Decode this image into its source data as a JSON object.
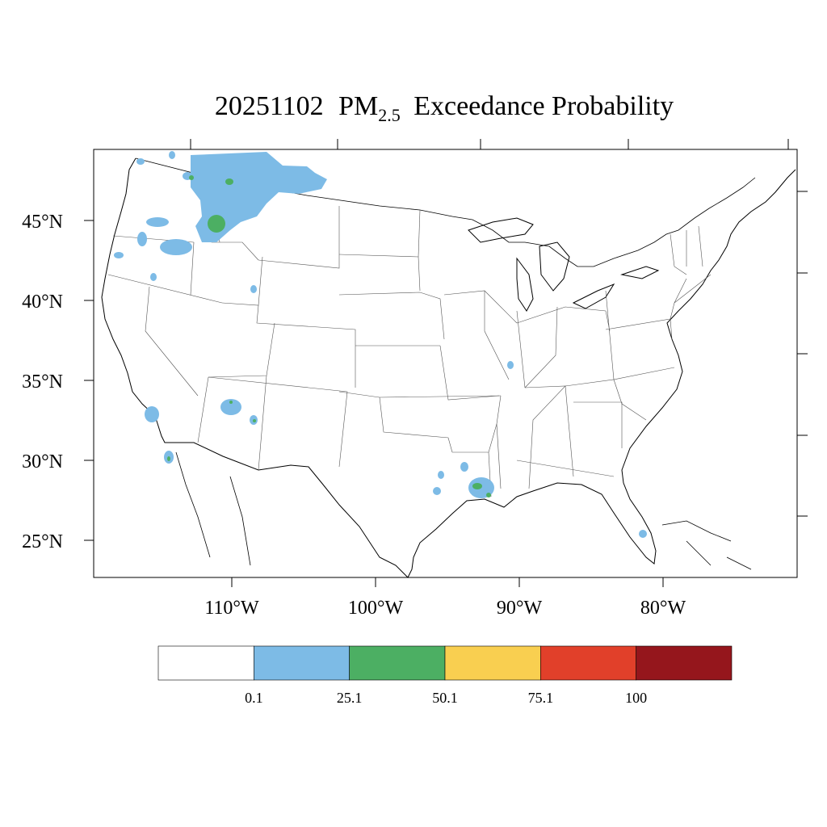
{
  "title": {
    "date": "20251102",
    "pm": "PM",
    "sub": "2.5",
    "rest": "Exceedance Probability"
  },
  "map": {
    "lat_labels": [
      "45°N",
      "40°N",
      "35°N",
      "30°N",
      "25°N"
    ],
    "lon_labels": [
      "110°W",
      "100°W",
      "90°W",
      "80°W"
    ],
    "colors": {
      "state_lines": "#555555",
      "coast": "#000000",
      "background": "#ffffff"
    }
  },
  "legend": {
    "colors": [
      "#ffffff",
      "#7dbbe6",
      "#4caf63",
      "#f9cf50",
      "#e1402a",
      "#95161c"
    ],
    "tick_labels": [
      "0.1",
      "25.1",
      "50.1",
      "75.1",
      "100"
    ]
  },
  "probability_regions": [
    {
      "name": "montana-idaho-plume",
      "level": "0.1-25.1"
    },
    {
      "name": "montana-core",
      "level": "25.1-50.1"
    },
    {
      "name": "louisiana-cluster",
      "level": "25.1-50.1"
    }
  ]
}
